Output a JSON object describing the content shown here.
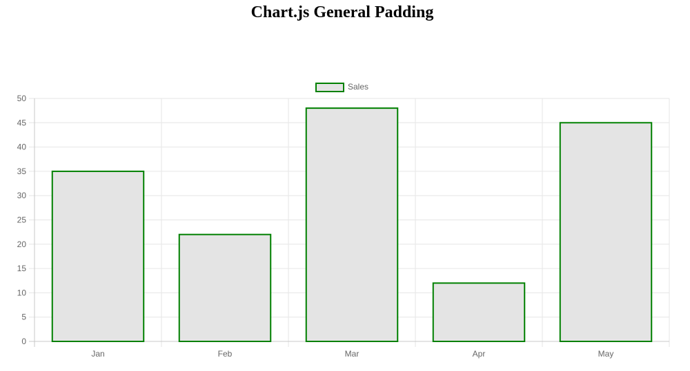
{
  "chart_data": {
    "type": "bar",
    "title": "Chart.js General Padding",
    "categories": [
      "Jan",
      "Feb",
      "Mar",
      "Apr",
      "May"
    ],
    "series": [
      {
        "name": "Sales",
        "values": [
          35,
          22,
          48,
          12,
          45
        ],
        "border_color": "#008000",
        "fill_color": "#e4e4e4"
      }
    ],
    "ylim": [
      0,
      50
    ],
    "yticks": [
      "0",
      "5",
      "10",
      "15",
      "20",
      "25",
      "30",
      "35",
      "40",
      "45",
      "50"
    ],
    "grid": true,
    "legend_position": "top"
  }
}
